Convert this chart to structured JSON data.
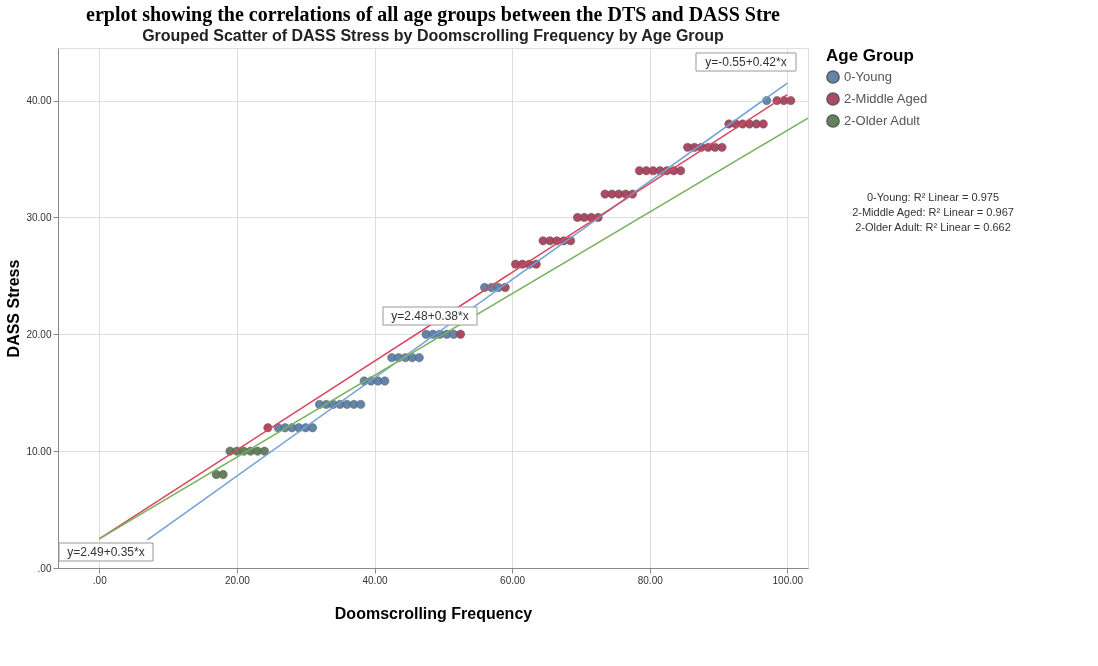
{
  "chart_data": {
    "type": "scatter",
    "title": "erplot showing the correlations of all age groups between the DTS and DASS Stre",
    "subtitle": "Grouped Scatter of DASS Stress by Doomscrolling Frequency by Age Group",
    "xlabel": "Doomscrolling Frequency",
    "ylabel": "DASS Stress",
    "legend_title": "Age Group",
    "xlim": [
      -6,
      103
    ],
    "ylim": [
      0,
      44.5
    ],
    "xticks": [
      {
        "value": 0,
        "label": ".00"
      },
      {
        "value": 20,
        "label": "20.00"
      },
      {
        "value": 40,
        "label": "40.00"
      },
      {
        "value": 60,
        "label": "60.00"
      },
      {
        "value": 80,
        "label": "80.00"
      },
      {
        "value": 100,
        "label": "100.00"
      }
    ],
    "yticks": [
      {
        "value": 0,
        "label": ".00"
      },
      {
        "value": 10,
        "label": "10.00"
      },
      {
        "value": 20,
        "label": "20.00"
      },
      {
        "value": 30,
        "label": "30.00"
      },
      {
        "value": 40,
        "label": "40.00"
      }
    ],
    "grid": true,
    "legend": "right",
    "marker": "circle",
    "series": [
      {
        "name": "0-Young",
        "color": "#5b7fa6",
        "x": [
          26,
          27,
          28,
          29,
          30,
          31,
          32,
          33,
          34,
          35,
          36,
          37,
          38,
          38.5,
          39.5,
          40.5,
          41.5,
          42.5,
          43.5,
          44.5,
          45.5,
          46.5,
          47.5,
          48.5,
          49.5,
          50.5,
          51.5,
          56,
          57,
          58,
          97
        ],
        "values": [
          12,
          12,
          12,
          12,
          12,
          12,
          14,
          14,
          14,
          14,
          14,
          14,
          14,
          16,
          16,
          16,
          16,
          18,
          18,
          18,
          18,
          18,
          20,
          20,
          20,
          20,
          20,
          24,
          24,
          24,
          40
        ]
      },
      {
        "name": "2-Middle Aged",
        "color": "#a8415b",
        "x": [
          24.5,
          52.5,
          59,
          60.5,
          61.5,
          62.5,
          63.5,
          64.5,
          65.5,
          66.5,
          67.5,
          68.5,
          69.5,
          70.5,
          71.5,
          72.5,
          73.5,
          74.5,
          75.5,
          76.5,
          77.5,
          78.5,
          79.5,
          80.5,
          81.5,
          82.5,
          83.5,
          84.5,
          85.5,
          86.5,
          87.5,
          88.5,
          89.5,
          90.5,
          91.5,
          92.5,
          93.5,
          94.5,
          95.5,
          96.5,
          98.5,
          99.5,
          100.5
        ],
        "values": [
          12,
          20,
          24,
          26,
          26,
          26,
          26,
          28,
          28,
          28,
          28,
          28,
          30,
          30,
          30,
          30,
          32,
          32,
          32,
          32,
          32,
          34,
          34,
          34,
          34,
          34,
          34,
          34,
          36,
          36,
          36,
          36,
          36,
          36,
          38,
          38,
          38,
          38,
          38,
          38,
          40,
          40,
          40
        ]
      },
      {
        "name": "2-Older Adult",
        "color": "#5c7a58",
        "x": [
          17,
          18,
          19,
          20,
          21,
          22,
          23,
          24
        ],
        "values": [
          8,
          8,
          10,
          10,
          10,
          10,
          10,
          10
        ]
      },
      {
        "type": "line",
        "marker": "none",
        "color": "#6fa0d6",
        "x": [
          7,
          100
        ],
        "values": [
          2.4,
          41.5
        ]
      },
      {
        "type": "line",
        "marker": "none",
        "color": "#d9475f",
        "x": [
          0,
          100
        ],
        "values": [
          2.5,
          40.5
        ]
      },
      {
        "type": "line",
        "marker": "none",
        "color": "#77b05a",
        "x": [
          0,
          103
        ],
        "values": [
          2.5,
          38.5
        ]
      }
    ],
    "annotations": [
      "y=-0.55+0.42*x",
      "y=2.48+0.38*x",
      "y=2.49+0.35*x",
      "0-Young: R² Linear = 0.975",
      "2-Middle Aged: R² Linear = 0.967",
      "2-Older Adult: R² Linear = 0.662"
    ]
  }
}
